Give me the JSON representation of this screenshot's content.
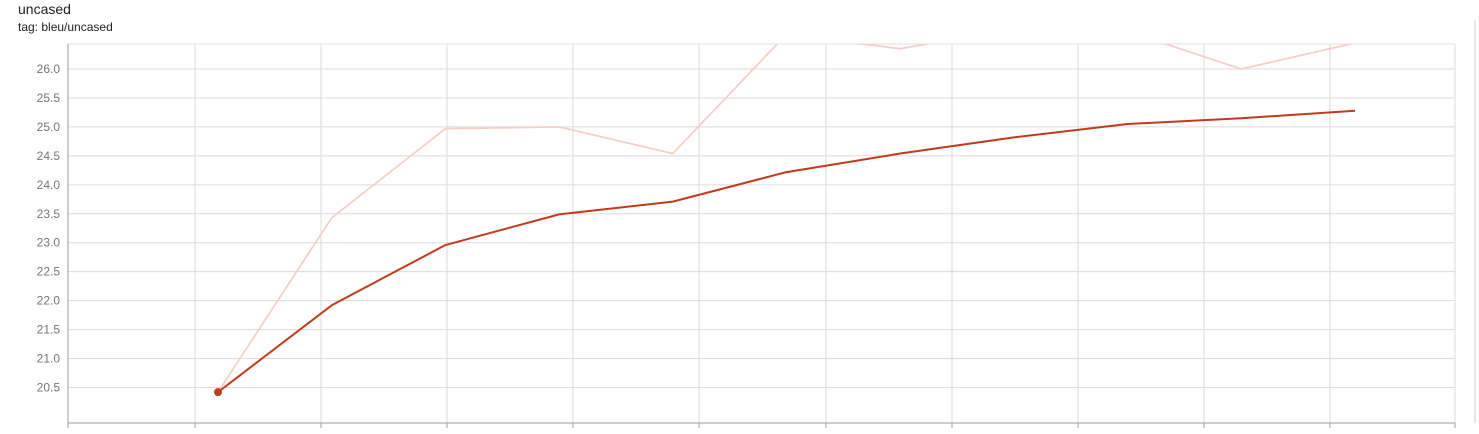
{
  "chart_data": {
    "type": "line",
    "title": "uncased",
    "subtitle": "tag: bleu/uncased",
    "xlabel": "",
    "ylabel": "",
    "x_ticks": [],
    "y_ticks": [
      "20.5",
      "21.0",
      "21.5",
      "22.0",
      "22.5",
      "23.0",
      "23.5",
      "24.0",
      "24.5",
      "25.0",
      "25.5",
      "26.0"
    ],
    "ylim": [
      20.25,
      26.45
    ],
    "grid": true,
    "log_scale": false,
    "x": [
      1,
      2,
      3,
      4,
      5,
      6,
      7,
      8,
      9,
      10,
      11
    ],
    "series": [
      {
        "role": "raw",
        "color": "#f4cfc6",
        "values": [
          20.42,
          23.43,
          24.97,
          25.0,
          24.54,
          26.6,
          26.35,
          26.7,
          26.65,
          26.0,
          26.45
        ]
      },
      {
        "role": "smoothed",
        "color": "#c23a1a",
        "values": [
          20.42,
          21.92,
          22.96,
          23.49,
          23.71,
          24.22,
          24.54,
          24.82,
          25.05,
          25.15,
          25.28
        ]
      }
    ]
  }
}
